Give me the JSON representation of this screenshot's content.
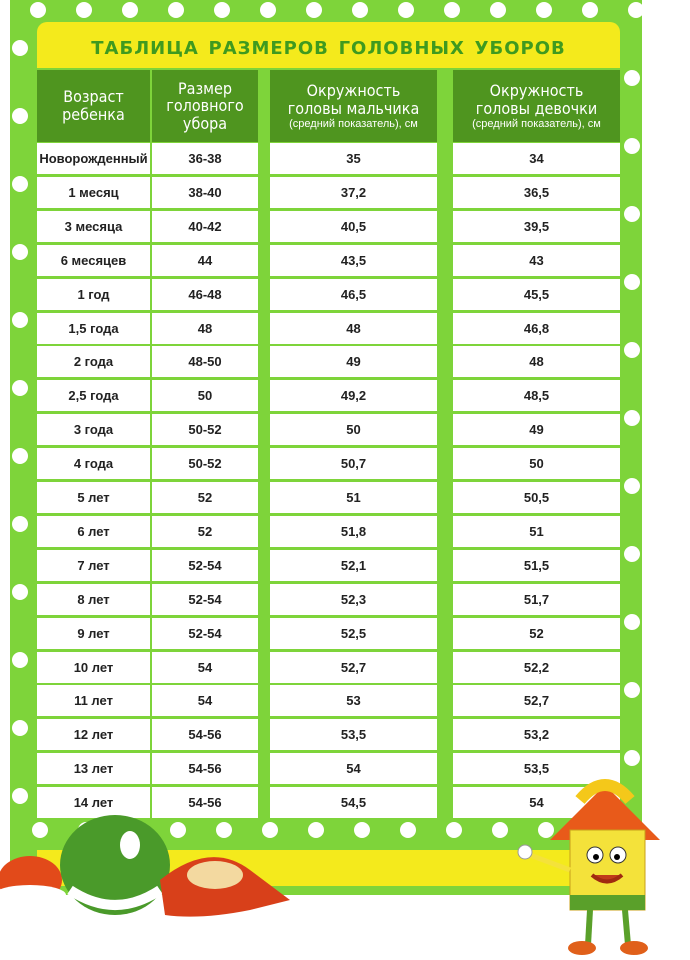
{
  "title": "Таблица размеров головных уборов",
  "headers": {
    "age": "Возраст ребенка",
    "size": "Размер головного убора",
    "boy": "Окружность головы мальчика",
    "girl": "Окружность головы девочки",
    "note": "(средний показатель), см"
  },
  "rows": [
    {
      "age": "Новорожденный",
      "size": "36-38",
      "boy": "35",
      "girl": "34"
    },
    {
      "age": "1 месяц",
      "size": "38-40",
      "boy": "37,2",
      "girl": "36,5"
    },
    {
      "age": "3 месяца",
      "size": "40-42",
      "boy": "40,5",
      "girl": "39,5"
    },
    {
      "age": "6 месяцев",
      "size": "44",
      "boy": "43,5",
      "girl": "43"
    },
    {
      "age": "1 год",
      "size": "46-48",
      "boy": "46,5",
      "girl": "45,5"
    },
    {
      "age": "1,5 года",
      "size": "48",
      "boy": "48",
      "girl": "46,8"
    },
    {
      "age": "2 года",
      "size": "48-50",
      "boy": "49",
      "girl": "48"
    },
    {
      "age": "2,5 года",
      "size": "50",
      "boy": "49,2",
      "girl": "48,5"
    },
    {
      "age": "3 года",
      "size": "50-52",
      "boy": "50",
      "girl": "49"
    },
    {
      "age": "4 года",
      "size": "50-52",
      "boy": "50,7",
      "girl": "50"
    },
    {
      "age": "5 лет",
      "size": "52",
      "boy": "51",
      "girl": "50,5"
    },
    {
      "age": "6 лет",
      "size": "52",
      "boy": "51,8",
      "girl": "51"
    },
    {
      "age": "7 лет",
      "size": "52-54",
      "boy": "52,1",
      "girl": "51,5"
    },
    {
      "age": "8 лет",
      "size": "52-54",
      "boy": "52,3",
      "girl": "51,7"
    },
    {
      "age": "9 лет",
      "size": "52-54",
      "boy": "52,5",
      "girl": "52"
    },
    {
      "age": "10 лет",
      "size": "54",
      "boy": "52,7",
      "girl": "52,2"
    },
    {
      "age": "11 лет",
      "size": "54",
      "boy": "53",
      "girl": "52,7"
    },
    {
      "age": "12 лет",
      "size": "54-56",
      "boy": "53,5",
      "girl": "53,2"
    },
    {
      "age": "13 лет",
      "size": "54-56",
      "boy": "54",
      "girl": "53,5"
    },
    {
      "age": "14 лет",
      "size": "54-56",
      "boy": "54,5",
      "girl": "54"
    }
  ],
  "colors": {
    "board": "#7ed43a",
    "header": "#4f951f",
    "title_bar": "#f4ea1c",
    "title_text": "#3f9a1f"
  }
}
